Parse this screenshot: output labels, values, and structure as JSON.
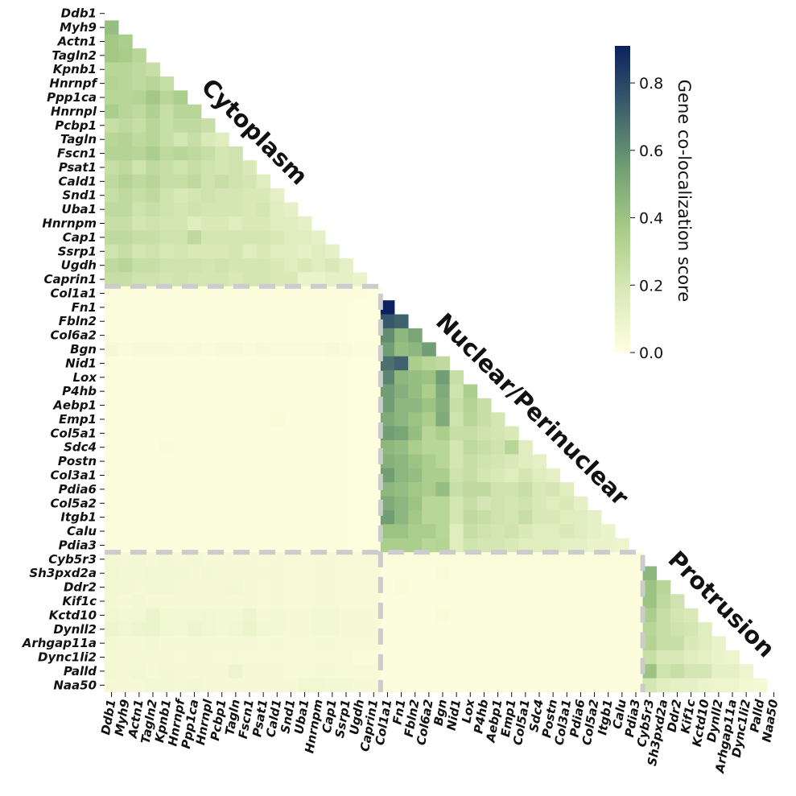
{
  "chart_data": {
    "type": "heatmap",
    "labels": [
      "Ddb1",
      "Myh9",
      "Actn1",
      "Tagln2",
      "Kpnb1",
      "Hnrnpf",
      "Ppp1ca",
      "Hnrnpl",
      "Pcbp1",
      "Tagln",
      "Fscn1",
      "Psat1",
      "Cald1",
      "Snd1",
      "Uba1",
      "Hnrnpm",
      "Cap1",
      "Ssrp1",
      "Ugdh",
      "Caprin1",
      "Col1a1",
      "Fn1",
      "Fbln2",
      "Col6a2",
      "Bgn",
      "Nid1",
      "Lox",
      "P4hb",
      "Aebp1",
      "Emp1",
      "Col5a1",
      "Sdc4",
      "Postn",
      "Col3a1",
      "Pdia6",
      "Col5a2",
      "Itgb1",
      "Calu",
      "Pdia3",
      "Cyb5r3",
      "Sh3pxd2a",
      "Ddr2",
      "Kif1c",
      "Kctd10",
      "Dynll2",
      "Arhgap11a",
      "Dync1li2",
      "Palld",
      "Naa50"
    ],
    "values": [
      [],
      [
        0.42
      ],
      [
        0.38,
        0.35
      ],
      [
        0.38,
        0.36,
        0.3
      ],
      [
        0.3,
        0.3,
        0.28,
        0.25
      ],
      [
        0.32,
        0.3,
        0.28,
        0.3,
        0.25
      ],
      [
        0.3,
        0.3,
        0.32,
        0.38,
        0.3,
        0.35
      ],
      [
        0.35,
        0.3,
        0.28,
        0.33,
        0.25,
        0.3,
        0.3
      ],
      [
        0.25,
        0.28,
        0.25,
        0.3,
        0.25,
        0.28,
        0.28,
        0.25
      ],
      [
        0.3,
        0.32,
        0.28,
        0.3,
        0.25,
        0.2,
        0.25,
        0.18,
        0.15
      ],
      [
        0.32,
        0.32,
        0.3,
        0.35,
        0.28,
        0.3,
        0.28,
        0.25,
        0.2,
        0.22
      ],
      [
        0.25,
        0.28,
        0.22,
        0.28,
        0.25,
        0.22,
        0.25,
        0.22,
        0.2,
        0.22,
        0.18
      ],
      [
        0.28,
        0.32,
        0.28,
        0.3,
        0.25,
        0.25,
        0.28,
        0.22,
        0.25,
        0.22,
        0.2,
        0.15
      ],
      [
        0.25,
        0.28,
        0.25,
        0.28,
        0.22,
        0.18,
        0.2,
        0.22,
        0.2,
        0.2,
        0.18,
        0.18,
        0.12
      ],
      [
        0.28,
        0.28,
        0.22,
        0.25,
        0.22,
        0.2,
        0.22,
        0.2,
        0.2,
        0.2,
        0.18,
        0.2,
        0.15,
        0.12
      ],
      [
        0.25,
        0.25,
        0.2,
        0.22,
        0.2,
        0.2,
        0.15,
        0.18,
        0.18,
        0.15,
        0.18,
        0.18,
        0.15,
        0.15,
        0.12
      ],
      [
        0.28,
        0.28,
        0.25,
        0.25,
        0.22,
        0.22,
        0.28,
        0.2,
        0.2,
        0.2,
        0.2,
        0.2,
        0.18,
        0.15,
        0.15,
        0.12
      ],
      [
        0.22,
        0.25,
        0.2,
        0.22,
        0.18,
        0.2,
        0.18,
        0.18,
        0.18,
        0.2,
        0.15,
        0.18,
        0.15,
        0.15,
        0.12,
        0.15,
        0.12
      ],
      [
        0.28,
        0.3,
        0.25,
        0.25,
        0.22,
        0.22,
        0.22,
        0.2,
        0.22,
        0.2,
        0.2,
        0.2,
        0.18,
        0.15,
        0.18,
        0.15,
        0.18,
        0.12
      ],
      [
        0.25,
        0.25,
        0.22,
        0.22,
        0.2,
        0.22,
        0.2,
        0.2,
        0.2,
        0.18,
        0.2,
        0.2,
        0.18,
        0.18,
        0.1,
        0.1,
        0.12,
        0.12,
        0.1
      ],
      [
        0.02,
        0.02,
        0.02,
        0.02,
        0.02,
        0.02,
        0.02,
        0.02,
        0.02,
        0.02,
        0.02,
        0.02,
        0.02,
        0.02,
        0.02,
        0.02,
        0.02,
        0.02,
        0.02,
        0.01
      ],
      [
        0.02,
        0.02,
        0.02,
        0.02,
        0.02,
        0.02,
        0.02,
        0.02,
        0.02,
        0.02,
        0.02,
        0.02,
        0.02,
        0.02,
        0.02,
        0.02,
        0.02,
        0.02,
        0.01,
        0.01,
        0.91
      ],
      [
        0.02,
        0.02,
        0.02,
        0.02,
        0.02,
        0.02,
        0.02,
        0.02,
        0.02,
        0.02,
        0.02,
        0.02,
        0.02,
        0.02,
        0.02,
        0.02,
        0.02,
        0.02,
        0.01,
        0.01,
        0.75,
        0.72
      ],
      [
        0.02,
        0.02,
        0.02,
        0.02,
        0.02,
        0.02,
        0.02,
        0.02,
        0.02,
        0.02,
        0.02,
        0.02,
        0.02,
        0.02,
        0.02,
        0.02,
        0.02,
        0.02,
        0.01,
        0.01,
        0.6,
        0.45,
        0.52
      ],
      [
        0.05,
        0.03,
        0.04,
        0.04,
        0.04,
        0.03,
        0.04,
        0.03,
        0.04,
        0.04,
        0.03,
        0.04,
        0.03,
        0.03,
        0.03,
        0.03,
        0.04,
        0.03,
        0.02,
        0.02,
        0.55,
        0.42,
        0.45,
        0.55
      ],
      [
        0.02,
        0.02,
        0.02,
        0.02,
        0.02,
        0.02,
        0.02,
        0.02,
        0.02,
        0.02,
        0.02,
        0.02,
        0.02,
        0.02,
        0.02,
        0.02,
        0.02,
        0.02,
        0.01,
        0.01,
        0.68,
        0.72,
        0.35,
        0.3,
        0.28
      ],
      [
        0.02,
        0.02,
        0.02,
        0.02,
        0.02,
        0.02,
        0.02,
        0.02,
        0.02,
        0.02,
        0.02,
        0.02,
        0.02,
        0.02,
        0.02,
        0.02,
        0.02,
        0.02,
        0.01,
        0.01,
        0.62,
        0.45,
        0.42,
        0.4,
        0.55,
        0.25
      ],
      [
        0.02,
        0.02,
        0.02,
        0.02,
        0.02,
        0.02,
        0.02,
        0.02,
        0.02,
        0.02,
        0.02,
        0.02,
        0.02,
        0.02,
        0.02,
        0.02,
        0.02,
        0.02,
        0.01,
        0.01,
        0.55,
        0.48,
        0.42,
        0.35,
        0.5,
        0.22,
        0.35
      ],
      [
        0.02,
        0.02,
        0.02,
        0.02,
        0.02,
        0.02,
        0.02,
        0.02,
        0.02,
        0.02,
        0.02,
        0.02,
        0.02,
        0.02,
        0.02,
        0.02,
        0.02,
        0.02,
        0.01,
        0.01,
        0.55,
        0.45,
        0.45,
        0.4,
        0.48,
        0.25,
        0.32,
        0.25
      ],
      [
        0.02,
        0.02,
        0.02,
        0.02,
        0.02,
        0.02,
        0.02,
        0.02,
        0.02,
        0.02,
        0.02,
        0.02,
        0.03,
        0.02,
        0.02,
        0.02,
        0.02,
        0.02,
        0.01,
        0.01,
        0.5,
        0.45,
        0.4,
        0.35,
        0.5,
        0.22,
        0.3,
        0.25,
        0.2
      ],
      [
        0.02,
        0.02,
        0.02,
        0.02,
        0.02,
        0.02,
        0.02,
        0.02,
        0.02,
        0.02,
        0.02,
        0.02,
        0.02,
        0.02,
        0.02,
        0.02,
        0.02,
        0.02,
        0.01,
        0.01,
        0.55,
        0.52,
        0.42,
        0.3,
        0.35,
        0.25,
        0.25,
        0.22,
        0.2,
        0.18
      ],
      [
        0.02,
        0.02,
        0.02,
        0.02,
        0.03,
        0.02,
        0.02,
        0.02,
        0.02,
        0.02,
        0.02,
        0.02,
        0.02,
        0.02,
        0.02,
        0.02,
        0.02,
        0.02,
        0.01,
        0.01,
        0.45,
        0.42,
        0.35,
        0.3,
        0.3,
        0.2,
        0.28,
        0.25,
        0.22,
        0.3,
        0.15
      ],
      [
        0.02,
        0.02,
        0.02,
        0.02,
        0.02,
        0.02,
        0.02,
        0.02,
        0.02,
        0.02,
        0.02,
        0.02,
        0.02,
        0.02,
        0.02,
        0.02,
        0.02,
        0.02,
        0.01,
        0.01,
        0.48,
        0.45,
        0.4,
        0.35,
        0.3,
        0.2,
        0.25,
        0.22,
        0.2,
        0.18,
        0.15,
        0.12
      ],
      [
        0.02,
        0.02,
        0.02,
        0.02,
        0.02,
        0.02,
        0.02,
        0.02,
        0.02,
        0.02,
        0.02,
        0.02,
        0.02,
        0.02,
        0.02,
        0.02,
        0.02,
        0.02,
        0.01,
        0.01,
        0.55,
        0.45,
        0.42,
        0.35,
        0.35,
        0.22,
        0.25,
        0.2,
        0.18,
        0.15,
        0.2,
        0.15,
        0.12
      ],
      [
        0.02,
        0.02,
        0.02,
        0.02,
        0.02,
        0.02,
        0.02,
        0.02,
        0.02,
        0.02,
        0.02,
        0.02,
        0.02,
        0.02,
        0.02,
        0.02,
        0.02,
        0.02,
        0.01,
        0.01,
        0.45,
        0.42,
        0.38,
        0.35,
        0.42,
        0.25,
        0.28,
        0.28,
        0.22,
        0.22,
        0.25,
        0.18,
        0.2,
        0.15
      ],
      [
        0.02,
        0.02,
        0.02,
        0.02,
        0.02,
        0.02,
        0.02,
        0.02,
        0.02,
        0.02,
        0.02,
        0.02,
        0.02,
        0.02,
        0.02,
        0.02,
        0.02,
        0.02,
        0.01,
        0.01,
        0.5,
        0.45,
        0.4,
        0.3,
        0.3,
        0.2,
        0.25,
        0.2,
        0.22,
        0.2,
        0.22,
        0.18,
        0.15,
        0.18,
        0.12
      ],
      [
        0.02,
        0.02,
        0.02,
        0.02,
        0.02,
        0.02,
        0.02,
        0.02,
        0.02,
        0.02,
        0.02,
        0.02,
        0.02,
        0.02,
        0.02,
        0.02,
        0.02,
        0.02,
        0.01,
        0.01,
        0.55,
        0.45,
        0.38,
        0.3,
        0.3,
        0.2,
        0.28,
        0.25,
        0.22,
        0.2,
        0.25,
        0.18,
        0.18,
        0.15,
        0.15,
        0.12
      ],
      [
        0.02,
        0.02,
        0.02,
        0.02,
        0.02,
        0.02,
        0.02,
        0.02,
        0.02,
        0.02,
        0.02,
        0.02,
        0.02,
        0.02,
        0.02,
        0.02,
        0.02,
        0.02,
        0.01,
        0.01,
        0.4,
        0.4,
        0.35,
        0.35,
        0.3,
        0.15,
        0.25,
        0.22,
        0.2,
        0.22,
        0.18,
        0.15,
        0.15,
        0.18,
        0.15,
        0.12,
        0.1
      ],
      [
        0.02,
        0.02,
        0.02,
        0.02,
        0.02,
        0.02,
        0.02,
        0.02,
        0.02,
        0.02,
        0.02,
        0.02,
        0.02,
        0.02,
        0.02,
        0.02,
        0.02,
        0.02,
        0.01,
        0.01,
        0.35,
        0.35,
        0.35,
        0.3,
        0.32,
        0.15,
        0.22,
        0.2,
        0.2,
        0.18,
        0.15,
        0.15,
        0.15,
        0.12,
        0.12,
        0.1,
        0.1,
        0.08
      ],
      [
        0.06,
        0.05,
        0.06,
        0.05,
        0.06,
        0.05,
        0.06,
        0.05,
        0.05,
        0.05,
        0.05,
        0.04,
        0.05,
        0.04,
        0.04,
        0.05,
        0.05,
        0.04,
        0.04,
        0.04,
        0.02,
        0.02,
        0.02,
        0.02,
        0.02,
        0.02,
        0.02,
        0.02,
        0.02,
        0.02,
        0.02,
        0.02,
        0.02,
        0.02,
        0.02,
        0.02,
        0.02,
        0.02,
        0.02
      ],
      [
        0.07,
        0.06,
        0.06,
        0.07,
        0.06,
        0.06,
        0.05,
        0.06,
        0.05,
        0.05,
        0.05,
        0.05,
        0.05,
        0.04,
        0.04,
        0.05,
        0.05,
        0.04,
        0.04,
        0.04,
        0.02,
        0.02,
        0.02,
        0.02,
        0.03,
        0.02,
        0.02,
        0.02,
        0.02,
        0.02,
        0.02,
        0.02,
        0.02,
        0.02,
        0.02,
        0.02,
        0.02,
        0.02,
        0.02,
        0.45
      ],
      [
        0.06,
        0.06,
        0.05,
        0.06,
        0.06,
        0.05,
        0.05,
        0.05,
        0.05,
        0.06,
        0.05,
        0.04,
        0.05,
        0.04,
        0.04,
        0.05,
        0.05,
        0.04,
        0.04,
        0.04,
        0.02,
        0.03,
        0.02,
        0.02,
        0.02,
        0.02,
        0.02,
        0.02,
        0.02,
        0.02,
        0.02,
        0.02,
        0.02,
        0.02,
        0.02,
        0.02,
        0.02,
        0.02,
        0.02,
        0.4,
        0.3
      ],
      [
        0.06,
        0.05,
        0.06,
        0.05,
        0.05,
        0.05,
        0.05,
        0.05,
        0.05,
        0.05,
        0.05,
        0.04,
        0.05,
        0.04,
        0.04,
        0.05,
        0.05,
        0.04,
        0.04,
        0.04,
        0.02,
        0.02,
        0.02,
        0.02,
        0.02,
        0.02,
        0.02,
        0.02,
        0.02,
        0.02,
        0.02,
        0.02,
        0.02,
        0.02,
        0.02,
        0.02,
        0.02,
        0.02,
        0.02,
        0.4,
        0.28,
        0.22
      ],
      [
        0.07,
        0.06,
        0.06,
        0.09,
        0.07,
        0.06,
        0.06,
        0.07,
        0.06,
        0.06,
        0.08,
        0.05,
        0.06,
        0.05,
        0.05,
        0.06,
        0.06,
        0.05,
        0.05,
        0.05,
        0.02,
        0.02,
        0.02,
        0.02,
        0.03,
        0.02,
        0.02,
        0.02,
        0.02,
        0.02,
        0.02,
        0.02,
        0.02,
        0.02,
        0.02,
        0.02,
        0.02,
        0.02,
        0.02,
        0.35,
        0.25,
        0.2,
        0.18
      ],
      [
        0.08,
        0.07,
        0.08,
        0.09,
        0.07,
        0.06,
        0.08,
        0.07,
        0.06,
        0.07,
        0.09,
        0.07,
        0.06,
        0.05,
        0.05,
        0.06,
        0.06,
        0.05,
        0.05,
        0.05,
        0.02,
        0.02,
        0.02,
        0.02,
        0.02,
        0.02,
        0.02,
        0.02,
        0.02,
        0.02,
        0.02,
        0.02,
        0.02,
        0.02,
        0.02,
        0.02,
        0.02,
        0.02,
        0.02,
        0.3,
        0.25,
        0.22,
        0.2,
        0.15
      ],
      [
        0.06,
        0.05,
        0.05,
        0.06,
        0.05,
        0.05,
        0.05,
        0.05,
        0.05,
        0.05,
        0.05,
        0.04,
        0.05,
        0.04,
        0.04,
        0.05,
        0.05,
        0.04,
        0.04,
        0.04,
        0.02,
        0.02,
        0.02,
        0.02,
        0.02,
        0.02,
        0.02,
        0.02,
        0.02,
        0.02,
        0.02,
        0.02,
        0.02,
        0.02,
        0.02,
        0.02,
        0.02,
        0.02,
        0.02,
        0.32,
        0.25,
        0.25,
        0.18,
        0.15,
        0.1
      ],
      [
        0.05,
        0.05,
        0.05,
        0.05,
        0.05,
        0.04,
        0.05,
        0.05,
        0.04,
        0.05,
        0.04,
        0.04,
        0.04,
        0.04,
        0.04,
        0.04,
        0.04,
        0.04,
        0.03,
        0.03,
        0.02,
        0.02,
        0.02,
        0.02,
        0.02,
        0.02,
        0.02,
        0.02,
        0.02,
        0.02,
        0.02,
        0.02,
        0.02,
        0.02,
        0.02,
        0.02,
        0.02,
        0.02,
        0.02,
        0.25,
        0.18,
        0.18,
        0.15,
        0.12,
        0.1,
        0.08
      ],
      [
        0.06,
        0.05,
        0.06,
        0.05,
        0.06,
        0.05,
        0.05,
        0.05,
        0.05,
        0.08,
        0.05,
        0.05,
        0.05,
        0.04,
        0.04,
        0.05,
        0.05,
        0.04,
        0.04,
        0.04,
        0.02,
        0.02,
        0.02,
        0.02,
        0.02,
        0.02,
        0.02,
        0.02,
        0.02,
        0.02,
        0.02,
        0.02,
        0.02,
        0.02,
        0.02,
        0.02,
        0.02,
        0.02,
        0.02,
        0.4,
        0.22,
        0.25,
        0.2,
        0.2,
        0.12,
        0.12,
        0.08
      ],
      [
        0.05,
        0.05,
        0.05,
        0.06,
        0.06,
        0.05,
        0.06,
        0.05,
        0.05,
        0.05,
        0.05,
        0.05,
        0.05,
        0.05,
        0.07,
        0.07,
        0.06,
        0.06,
        0.05,
        0.05,
        0.02,
        0.02,
        0.02,
        0.02,
        0.02,
        0.02,
        0.02,
        0.02,
        0.02,
        0.02,
        0.02,
        0.02,
        0.02,
        0.02,
        0.02,
        0.02,
        0.02,
        0.02,
        0.02,
        0.2,
        0.15,
        0.12,
        0.12,
        0.1,
        0.08,
        0.08,
        0.06,
        0.05
      ]
    ],
    "colors": [
      "#ffffe0",
      "#d9e9b8",
      "#a8cc88",
      "#729f74",
      "#3d5f6c",
      "#0b2160"
    ],
    "zlim": [
      0,
      0.91
    ],
    "zticks": [
      {
        "value": 0,
        "label": "0.0"
      },
      {
        "value": 0.2,
        "label": "0.2"
      },
      {
        "value": 0.4,
        "label": "0.4"
      },
      {
        "value": 0.6,
        "label": "0.6"
      },
      {
        "value": 0.8,
        "label": "0.8"
      }
    ],
    "colorbar_label": "Gene co-localization score",
    "annotations": [
      "Cytoplasm",
      "Nuclear/Perinuclear",
      "Protrusion"
    ]
  }
}
